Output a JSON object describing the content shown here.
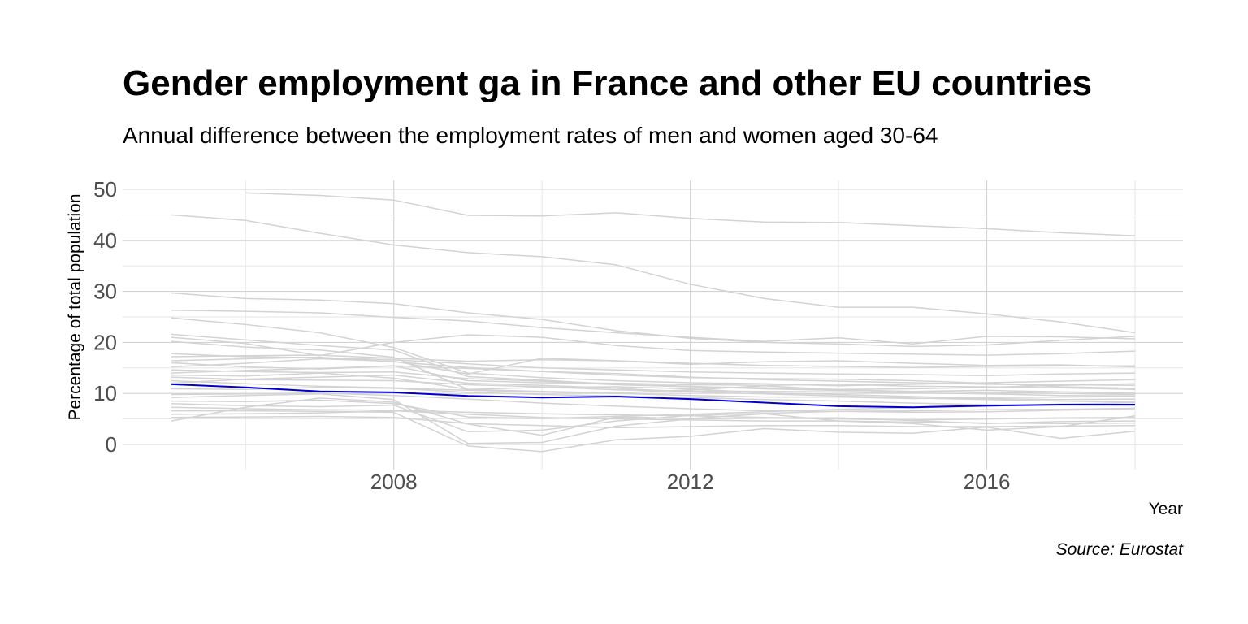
{
  "chart_data": {
    "type": "line",
    "title": "Gender employment ga in France and other EU countries",
    "subtitle": "Annual difference between the employment rates of men and women aged 30-64",
    "xlabel": "Year",
    "ylabel": "Percentage of total population",
    "caption": "Source: Eurostat",
    "xlim": [
      2005,
      2018
    ],
    "ylim": [
      0,
      50
    ],
    "x_ticks": [
      2008,
      2012,
      2016
    ],
    "y_ticks": [
      0,
      10,
      20,
      30,
      40,
      50
    ],
    "grid": true,
    "legend": "none",
    "highlight_color": "#0000cc",
    "background_line_color": "#d3d3d3",
    "x": [
      2005,
      2006,
      2007,
      2008,
      2009,
      2010,
      2011,
      2012,
      2013,
      2014,
      2015,
      2016,
      2017,
      2018
    ],
    "highlight_series": {
      "values": [
        11.8,
        11.2,
        10.4,
        10.2,
        9.5,
        9.2,
        9.4,
        8.9,
        8.2,
        7.5,
        7.3,
        7.6,
        7.8,
        7.8
      ]
    },
    "series": [
      {
        "values": [
          null,
          49.3,
          48.8,
          47.9,
          44.9,
          44.8,
          45.4,
          44.3,
          43.6,
          43.5,
          42.9,
          42.3,
          41.5,
          40.9
        ]
      },
      {
        "values": [
          45.0,
          43.9,
          41.4,
          39.1,
          37.6,
          36.8,
          35.2,
          31.4,
          28.6,
          26.9,
          26.9,
          25.6,
          24.0,
          21.9
        ]
      },
      {
        "values": [
          29.7,
          28.6,
          28.3,
          27.6,
          25.8,
          24.5,
          22.3,
          20.8,
          20.0,
          19.7,
          19.2,
          19.5,
          20.4,
          21.2
        ]
      },
      {
        "values": [
          26.3,
          26.1,
          25.8,
          24.9,
          24.2,
          22.9,
          21.9,
          21.0,
          20.2,
          20.9,
          19.7,
          21.2,
          21.1,
          20.7
        ]
      },
      {
        "values": [
          24.8,
          23.5,
          21.9,
          19.0,
          14.0,
          13.1,
          12.5,
          12.1,
          11.9,
          11.5,
          11.8,
          12.1,
          12.4,
          12.7
        ]
      },
      {
        "values": [
          21.6,
          20.5,
          19.4,
          18.5,
          13.3,
          12.6,
          11.8,
          11.4,
          10.9,
          10.6,
          10.4,
          10.2,
          10.0,
          9.8
        ]
      },
      {
        "values": [
          21.0,
          19.8,
          17.4,
          20.0,
          21.5,
          21.0,
          19.4,
          18.4,
          18.1,
          17.9,
          17.7,
          17.5,
          17.8,
          18.3
        ]
      },
      {
        "values": [
          20.2,
          19.1,
          18.5,
          17.1,
          10.8,
          11.2,
          11.3,
          10.9,
          10.1,
          9.8,
          9.4,
          9.0,
          8.8,
          8.9
        ]
      },
      {
        "values": [
          17.8,
          17.2,
          17.0,
          16.6,
          15.8,
          15.0,
          14.6,
          14.2,
          14.0,
          13.8,
          13.7,
          13.5,
          13.8,
          14.0
        ]
      },
      {
        "values": [
          17.2,
          17.4,
          17.5,
          16.9,
          16.3,
          16.6,
          16.4,
          15.9,
          15.5,
          15.3,
          15.1,
          15.3,
          15.4,
          15.4
        ]
      },
      {
        "values": [
          16.4,
          16.8,
          17.1,
          16.2,
          15.1,
          14.3,
          13.9,
          13.2,
          12.7,
          12.4,
          12.1,
          11.8,
          11.7,
          11.6
        ]
      },
      {
        "values": [
          16.0,
          15.2,
          14.8,
          15.4,
          14.9,
          14.3,
          13.6,
          13.1,
          12.9,
          12.8,
          12.5,
          12.0,
          11.3,
          11.0
        ]
      },
      {
        "values": [
          15.2,
          15.9,
          16.8,
          16.3,
          13.8,
          16.9,
          16.4,
          15.7,
          16.2,
          16.4,
          15.9,
          15.5,
          15.6,
          15.2
        ]
      },
      {
        "values": [
          14.6,
          14.3,
          14.1,
          14.2,
          12.9,
          12.4,
          11.7,
          11.3,
          11.1,
          10.8,
          10.9,
          11.2,
          11.6,
          11.9
        ]
      },
      {
        "values": [
          14.0,
          14.5,
          14.9,
          15.4,
          12.5,
          12.1,
          12.0,
          11.7,
          11.6,
          11.8,
          11.4,
          11.3,
          11.1,
          10.8
        ]
      },
      {
        "values": [
          13.6,
          13.4,
          14.0,
          13.0,
          10.8,
          10.4,
          10.1,
          10.7,
          11.5,
          10.7,
          10.4,
          10.6,
          10.3,
          10.1
        ]
      },
      {
        "values": [
          13.2,
          12.7,
          12.6,
          12.5,
          11.7,
          11.3,
          10.7,
          10.5,
          10.4,
          10.3,
          10.1,
          9.9,
          9.6,
          9.5
        ]
      },
      {
        "values": [
          12.5,
          11.9,
          11.4,
          11.1,
          10.6,
          10.3,
          10.0,
          9.6,
          9.3,
          9.3,
          9.0,
          9.2,
          9.3,
          9.4
        ]
      },
      {
        "values": [
          12.0,
          12.8,
          13.2,
          13.6,
          12.0,
          11.6,
          11.0,
          10.3,
          9.9,
          9.5,
          9.1,
          8.8,
          8.5,
          8.3
        ]
      },
      {
        "values": [
          10.9,
          10.8,
          11.2,
          11.0,
          10.2,
          9.8,
          9.5,
          9.2,
          8.8,
          8.5,
          8.1,
          7.8,
          7.7,
          7.6
        ]
      },
      {
        "values": [
          9.8,
          9.9,
          10.1,
          9.6,
          8.9,
          8.1,
          7.5,
          7.0,
          6.6,
          6.5,
          6.3,
          6.4,
          6.7,
          7.0
        ]
      },
      {
        "values": [
          9.2,
          9.6,
          9.9,
          8.8,
          0.2,
          0.4,
          3.6,
          5.0,
          5.2,
          5.2,
          4.7,
          4.1,
          4.5,
          4.6
        ]
      },
      {
        "values": [
          8.5,
          8.4,
          8.7,
          8.0,
          5.4,
          5.1,
          5.5,
          5.9,
          6.4,
          6.9,
          7.2,
          7.5,
          7.9,
          8.2
        ]
      },
      {
        "values": [
          8.0,
          7.6,
          7.4,
          7.7,
          2.5,
          2.8,
          4.6,
          5.7,
          6.1,
          6.5,
          6.6,
          6.8,
          6.9,
          7.1
        ]
      },
      {
        "values": [
          7.3,
          7.0,
          6.8,
          6.7,
          6.3,
          6.0,
          5.8,
          5.6,
          5.3,
          5.0,
          4.8,
          5.0,
          5.2,
          5.3
        ]
      },
      {
        "values": [
          6.6,
          6.6,
          6.5,
          6.3,
          -0.3,
          -1.4,
          0.9,
          1.6,
          3.1,
          2.4,
          2.2,
          3.4,
          1.2,
          2.6
        ]
      },
      {
        "values": [
          5.9,
          6.0,
          6.2,
          6.6,
          5.9,
          5.3,
          5.0,
          4.8,
          4.6,
          4.6,
          4.4,
          4.2,
          4.1,
          4.2
        ]
      },
      {
        "values": [
          5.3,
          5.4,
          5.5,
          5.3,
          4.1,
          3.7,
          3.3,
          3.5,
          3.7,
          3.7,
          3.5,
          3.5,
          3.6,
          3.7
        ]
      },
      {
        "values": [
          4.6,
          7.3,
          9.1,
          8.3,
          4.0,
          1.8,
          5.4,
          5.1,
          6.0,
          4.6,
          4.1,
          2.8,
          3.5,
          5.6
        ]
      }
    ]
  }
}
